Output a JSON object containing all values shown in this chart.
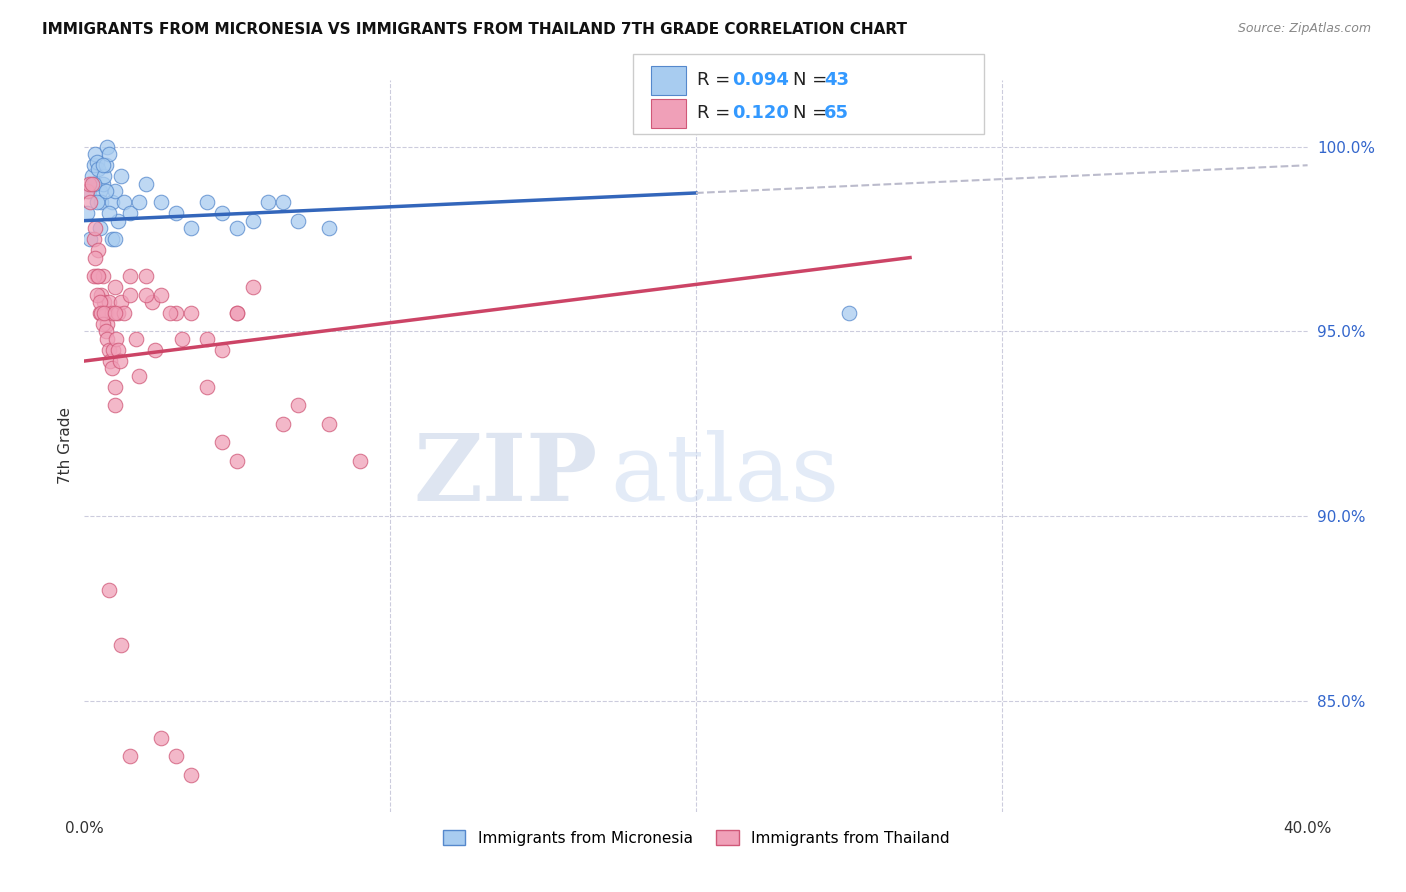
{
  "title": "IMMIGRANTS FROM MICRONESIA VS IMMIGRANTS FROM THAILAND 7TH GRADE CORRELATION CHART",
  "source": "Source: ZipAtlas.com",
  "ylabel": "7th Grade",
  "xmin": 0.0,
  "xmax": 40.0,
  "ymin": 82.0,
  "ymax": 101.8,
  "legend_R1": "0.094",
  "legend_N1": "43",
  "legend_R2": "0.120",
  "legend_N2": "65",
  "color_micronesia_fill": "#A8CCF0",
  "color_micronesia_edge": "#5588CC",
  "color_thailand_fill": "#F0A0B8",
  "color_thailand_edge": "#D05878",
  "color_line_micronesia": "#3366BB",
  "color_line_thailand": "#CC4466",
  "color_trendline_ext": "#BBBBCC",
  "micronesia_x": [
    0.1,
    0.15,
    0.2,
    0.25,
    0.3,
    0.35,
    0.4,
    0.45,
    0.5,
    0.55,
    0.6,
    0.65,
    0.7,
    0.75,
    0.8,
    0.9,
    1.0,
    1.1,
    1.2,
    1.3,
    1.5,
    1.8,
    2.0,
    2.5,
    3.0,
    3.5,
    4.0,
    4.5,
    5.0,
    5.5,
    6.0,
    6.5,
    7.0,
    8.0,
    0.3,
    0.4,
    0.5,
    0.6,
    0.7,
    0.8,
    0.9,
    25.0,
    1.0
  ],
  "micronesia_y": [
    98.2,
    98.8,
    97.5,
    99.2,
    99.5,
    99.8,
    99.6,
    99.4,
    98.8,
    98.5,
    99.0,
    99.2,
    99.5,
    100.0,
    99.8,
    98.5,
    98.8,
    98.0,
    99.2,
    98.5,
    98.2,
    98.5,
    99.0,
    98.5,
    98.2,
    97.8,
    98.5,
    98.2,
    97.8,
    98.0,
    98.5,
    98.5,
    98.0,
    97.8,
    99.0,
    98.5,
    97.8,
    99.5,
    98.8,
    98.2,
    97.5,
    95.5,
    97.5
  ],
  "thailand_x": [
    0.1,
    0.15,
    0.2,
    0.25,
    0.3,
    0.35,
    0.4,
    0.45,
    0.5,
    0.55,
    0.6,
    0.65,
    0.7,
    0.75,
    0.8,
    0.9,
    1.0,
    1.1,
    1.2,
    1.3,
    1.5,
    1.7,
    2.0,
    2.2,
    2.5,
    3.0,
    3.5,
    4.0,
    5.0,
    5.5,
    6.5,
    7.0,
    0.3,
    0.35,
    0.4,
    0.45,
    0.5,
    0.55,
    0.6,
    0.65,
    0.7,
    0.75,
    0.8,
    0.85,
    0.9,
    0.95,
    1.0,
    1.05,
    1.1,
    1.15,
    2.8,
    3.2,
    1.8,
    2.0,
    2.3,
    1.5,
    4.5,
    5.0,
    8.0,
    9.0,
    1.0,
    1.0,
    4.0,
    4.5,
    5.0
  ],
  "thailand_y": [
    98.8,
    99.0,
    98.5,
    99.0,
    97.5,
    97.8,
    96.5,
    97.2,
    95.5,
    96.0,
    96.5,
    95.8,
    95.5,
    95.2,
    95.8,
    95.5,
    96.2,
    95.5,
    95.8,
    95.5,
    96.0,
    94.8,
    96.5,
    95.8,
    96.0,
    95.5,
    95.5,
    94.8,
    95.5,
    96.2,
    92.5,
    93.0,
    96.5,
    97.0,
    96.0,
    96.5,
    95.8,
    95.5,
    95.2,
    95.5,
    95.0,
    94.8,
    94.5,
    94.2,
    94.0,
    94.5,
    95.5,
    94.8,
    94.5,
    94.2,
    95.5,
    94.8,
    93.8,
    96.0,
    94.5,
    96.5,
    94.5,
    95.5,
    92.5,
    91.5,
    93.5,
    93.0,
    93.5,
    92.0,
    91.5
  ],
  "thailand_lowx": [
    0.8,
    1.2,
    1.5,
    2.5,
    3.0,
    3.5
  ],
  "thailand_lowy": [
    88.0,
    86.5,
    83.5,
    84.0,
    83.5,
    83.0
  ],
  "watermark_zip": "ZIP",
  "watermark_atlas": "atlas",
  "grid_color": "#CCCCDD",
  "background_color": "#FFFFFF"
}
